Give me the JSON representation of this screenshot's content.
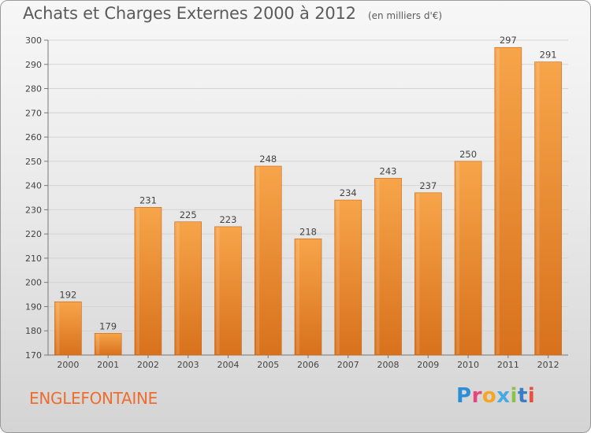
{
  "header": {
    "title": "Achats et Charges Externes 2000 à 2012",
    "unit": "(en milliers d'€)"
  },
  "footer": {
    "town": "ENGLEFONTAINE",
    "logo": "Proxiti"
  },
  "colors": {
    "bar_light": "#f7a54a",
    "bar_dark": "#d8711c",
    "grid": "#d3d3d3",
    "town": "#ee6d2d"
  },
  "chart_data": {
    "type": "bar",
    "title": "Achats et Charges Externes 2000 à 2012",
    "subtitle": "(en milliers d'€)",
    "xlabel": "",
    "ylabel": "",
    "categories": [
      "2000",
      "2001",
      "2002",
      "2003",
      "2004",
      "2005",
      "2006",
      "2007",
      "2008",
      "2009",
      "2010",
      "2011",
      "2012"
    ],
    "values": [
      192,
      179,
      231,
      225,
      223,
      248,
      218,
      234,
      243,
      237,
      250,
      297,
      291
    ],
    "ylim": [
      170,
      300
    ],
    "yticks": [
      170,
      180,
      190,
      200,
      210,
      220,
      230,
      240,
      250,
      260,
      270,
      280,
      290,
      300
    ],
    "grid": true,
    "data_labels": true
  }
}
